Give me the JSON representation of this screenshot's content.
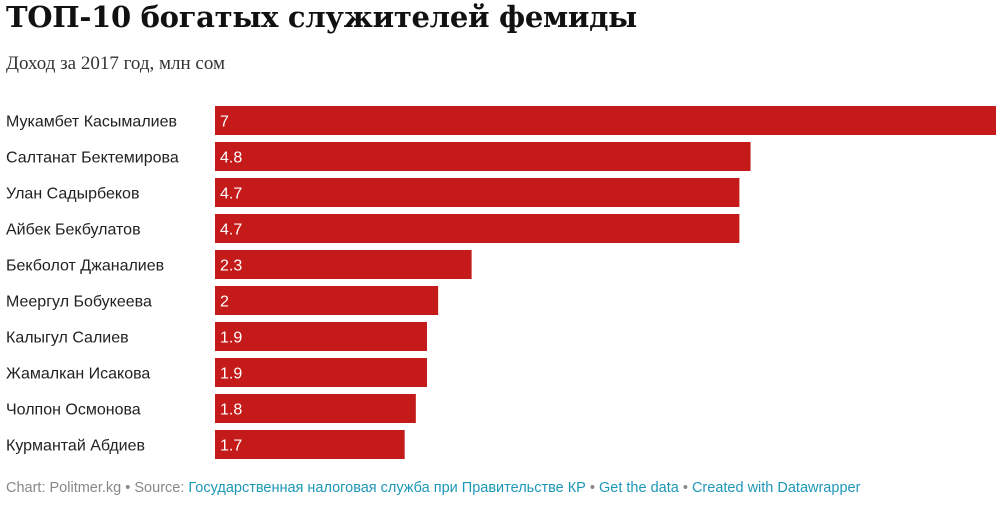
{
  "chart_data": {
    "type": "bar",
    "orientation": "horizontal",
    "title": "ТОП-10 богатых служителей фемиды",
    "subtitle": "Доход за 2017 год, млн сом",
    "categories": [
      "Мукамбет Касымалиев",
      "Салтанат Бектемирова",
      "Улан Садырбеков",
      "Айбек Бекбулатов",
      "Бекболот Джаналиев",
      "Меергул Бобукеева",
      "Калыгул Салиев",
      "Жамалкан Исакова",
      "Чолпон Осмонова",
      "Курмантай Абдиев"
    ],
    "values": [
      7,
      4.8,
      4.7,
      4.7,
      2.3,
      2,
      1.9,
      1.9,
      1.8,
      1.7
    ],
    "value_labels": [
      "7",
      "4.8",
      "4.7",
      "4.7",
      "2.3",
      "2",
      "1.9",
      "1.9",
      "1.8",
      "1.7"
    ],
    "xlim": [
      0,
      7
    ],
    "xlabel": "",
    "ylabel": "",
    "grid": false,
    "bar_color": "#c41a1a"
  },
  "footer": {
    "chart_prefix": "Chart: Politmer.kg",
    "source_prefix": "Source: ",
    "source_name": "Государственная налоговая служба при Правительстве КР",
    "get_data": "Get the data",
    "created_with": "Created with Datawrapper",
    "separator": "•",
    "link_color": "#1d97b8"
  }
}
